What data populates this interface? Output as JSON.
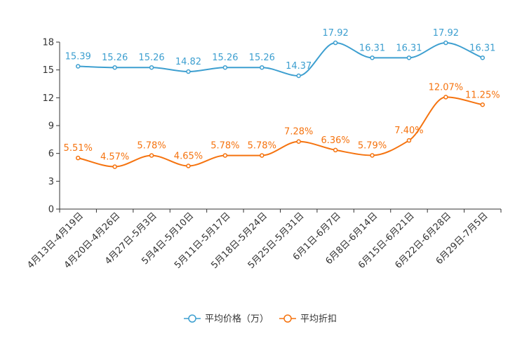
{
  "chart_data": {
    "type": "line",
    "title": "",
    "xlabel": "",
    "ylabel": "",
    "ylim": [
      0,
      18
    ],
    "yticks": [
      0,
      3,
      6,
      9,
      12,
      15,
      18
    ],
    "grid": false,
    "legend_position": "bottom-center",
    "categories": [
      "4月13日-4月19日",
      "4月20日-4月26日",
      "4月27日-5月3日",
      "5月4日-5月10日",
      "5月11日-5月17日",
      "5月18日-5月24日",
      "5月25日-5月31日",
      "6月1日-6月7日",
      "6月8日-6月14日",
      "6月15日-6月21日",
      "6月22日-6月28日",
      "6月29日-7月5日"
    ],
    "series": [
      {
        "name": "平均价格（万）",
        "color": "#3d9fd0",
        "values": [
          15.39,
          15.26,
          15.26,
          14.82,
          15.26,
          15.26,
          14.37,
          17.92,
          16.31,
          16.31,
          17.92,
          16.31
        ],
        "labels": [
          "15.39",
          "15.26",
          "15.26",
          "14.82",
          "15.26",
          "15.26",
          "14.37",
          "17.92",
          "16.31",
          "16.31",
          "17.92",
          "16.31"
        ]
      },
      {
        "name": "平均折扣",
        "color": "#f5730f",
        "values": [
          5.51,
          4.57,
          5.78,
          4.65,
          5.78,
          5.78,
          7.28,
          6.36,
          5.79,
          7.4,
          12.07,
          11.25
        ],
        "labels": [
          "5.51%",
          "4.57%",
          "5.78%",
          "4.65%",
          "5.78%",
          "5.78%",
          "7.28%",
          "6.36%",
          "5.79%",
          "7.40%",
          "12.07%",
          "11.25%"
        ]
      }
    ]
  }
}
